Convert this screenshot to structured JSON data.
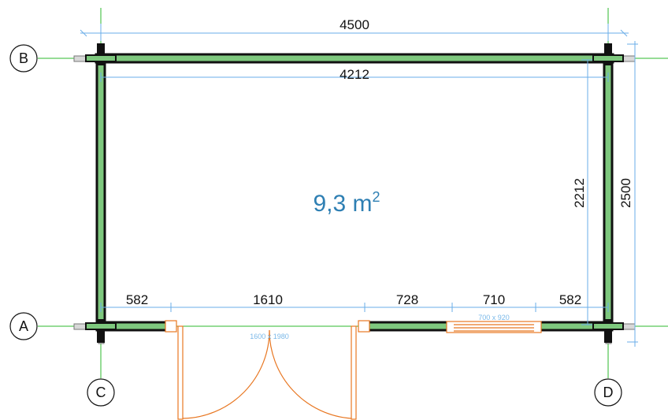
{
  "grid": {
    "rows": [
      "B",
      "A"
    ],
    "cols": [
      "C",
      "D"
    ]
  },
  "dimensions": {
    "outer_width": "4500",
    "inner_width": "4212",
    "outer_depth": "2500",
    "inner_depth": "2212",
    "front_segments": [
      "582",
      "1610",
      "728",
      "710",
      "582"
    ]
  },
  "area": {
    "value": "9,3 m",
    "unit_sup": "2"
  },
  "openings": {
    "door_label": "1600 x 1980",
    "window_label": "700 x 920"
  },
  "colors": {
    "wall": "#111111",
    "wall_core": "#7ec87e",
    "grid_line": "#2db82d",
    "dimension": "#6aaee8",
    "area_text": "#2e7fb3",
    "opening": "#e87722",
    "label_blue": "#7ab8e8"
  }
}
